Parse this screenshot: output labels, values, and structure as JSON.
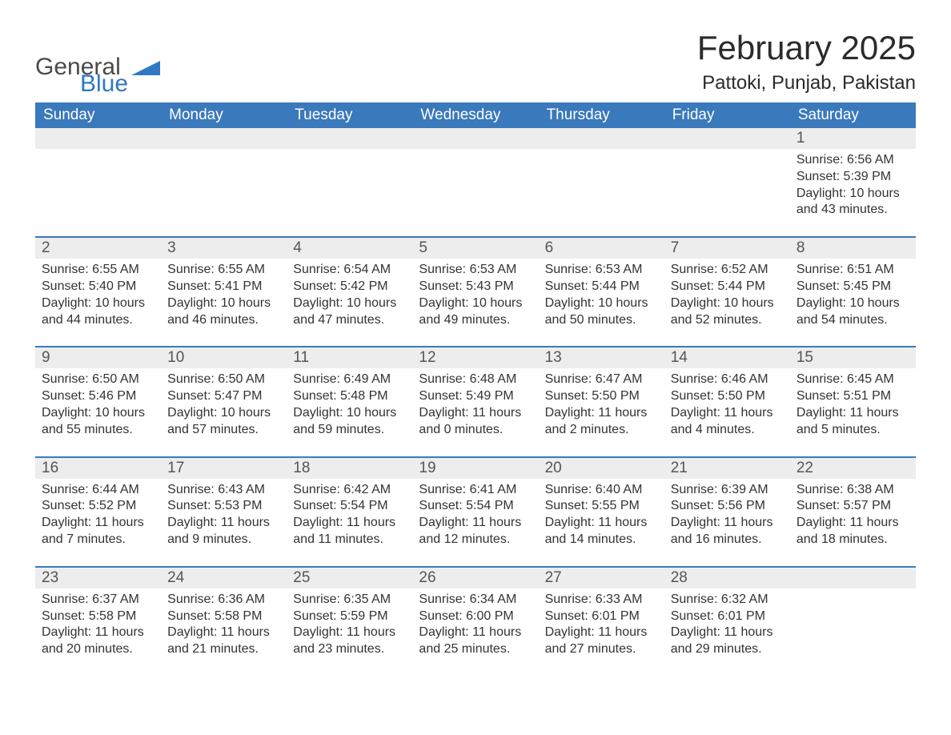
{
  "brand": {
    "word1": "General",
    "word2": "Blue",
    "flag_color": "#2f78c2"
  },
  "header": {
    "title": "February 2025",
    "location": "Pattoki, Punjab, Pakistan"
  },
  "colors": {
    "header_bg": "#3a79bb",
    "header_fg": "#ffffff",
    "daynum_bg": "#ededed",
    "row_divider": "#3a79bb",
    "text": "#333333",
    "page_bg": "#ffffff"
  },
  "typography": {
    "title_fontsize": 42,
    "location_fontsize": 24,
    "dayheader_fontsize": 19,
    "body_fontsize": 16
  },
  "day_names": [
    "Sunday",
    "Monday",
    "Tuesday",
    "Wednesday",
    "Thursday",
    "Friday",
    "Saturday"
  ],
  "weeks": [
    [
      null,
      null,
      null,
      null,
      null,
      null,
      {
        "n": "1",
        "sunrise": "Sunrise: 6:56 AM",
        "sunset": "Sunset: 5:39 PM",
        "daylight": "Daylight: 10 hours and 43 minutes."
      }
    ],
    [
      {
        "n": "2",
        "sunrise": "Sunrise: 6:55 AM",
        "sunset": "Sunset: 5:40 PM",
        "daylight": "Daylight: 10 hours and 44 minutes."
      },
      {
        "n": "3",
        "sunrise": "Sunrise: 6:55 AM",
        "sunset": "Sunset: 5:41 PM",
        "daylight": "Daylight: 10 hours and 46 minutes."
      },
      {
        "n": "4",
        "sunrise": "Sunrise: 6:54 AM",
        "sunset": "Sunset: 5:42 PM",
        "daylight": "Daylight: 10 hours and 47 minutes."
      },
      {
        "n": "5",
        "sunrise": "Sunrise: 6:53 AM",
        "sunset": "Sunset: 5:43 PM",
        "daylight": "Daylight: 10 hours and 49 minutes."
      },
      {
        "n": "6",
        "sunrise": "Sunrise: 6:53 AM",
        "sunset": "Sunset: 5:44 PM",
        "daylight": "Daylight: 10 hours and 50 minutes."
      },
      {
        "n": "7",
        "sunrise": "Sunrise: 6:52 AM",
        "sunset": "Sunset: 5:44 PM",
        "daylight": "Daylight: 10 hours and 52 minutes."
      },
      {
        "n": "8",
        "sunrise": "Sunrise: 6:51 AM",
        "sunset": "Sunset: 5:45 PM",
        "daylight": "Daylight: 10 hours and 54 minutes."
      }
    ],
    [
      {
        "n": "9",
        "sunrise": "Sunrise: 6:50 AM",
        "sunset": "Sunset: 5:46 PM",
        "daylight": "Daylight: 10 hours and 55 minutes."
      },
      {
        "n": "10",
        "sunrise": "Sunrise: 6:50 AM",
        "sunset": "Sunset: 5:47 PM",
        "daylight": "Daylight: 10 hours and 57 minutes."
      },
      {
        "n": "11",
        "sunrise": "Sunrise: 6:49 AM",
        "sunset": "Sunset: 5:48 PM",
        "daylight": "Daylight: 10 hours and 59 minutes."
      },
      {
        "n": "12",
        "sunrise": "Sunrise: 6:48 AM",
        "sunset": "Sunset: 5:49 PM",
        "daylight": "Daylight: 11 hours and 0 minutes."
      },
      {
        "n": "13",
        "sunrise": "Sunrise: 6:47 AM",
        "sunset": "Sunset: 5:50 PM",
        "daylight": "Daylight: 11 hours and 2 minutes."
      },
      {
        "n": "14",
        "sunrise": "Sunrise: 6:46 AM",
        "sunset": "Sunset: 5:50 PM",
        "daylight": "Daylight: 11 hours and 4 minutes."
      },
      {
        "n": "15",
        "sunrise": "Sunrise: 6:45 AM",
        "sunset": "Sunset: 5:51 PM",
        "daylight": "Daylight: 11 hours and 5 minutes."
      }
    ],
    [
      {
        "n": "16",
        "sunrise": "Sunrise: 6:44 AM",
        "sunset": "Sunset: 5:52 PM",
        "daylight": "Daylight: 11 hours and 7 minutes."
      },
      {
        "n": "17",
        "sunrise": "Sunrise: 6:43 AM",
        "sunset": "Sunset: 5:53 PM",
        "daylight": "Daylight: 11 hours and 9 minutes."
      },
      {
        "n": "18",
        "sunrise": "Sunrise: 6:42 AM",
        "sunset": "Sunset: 5:54 PM",
        "daylight": "Daylight: 11 hours and 11 minutes."
      },
      {
        "n": "19",
        "sunrise": "Sunrise: 6:41 AM",
        "sunset": "Sunset: 5:54 PM",
        "daylight": "Daylight: 11 hours and 12 minutes."
      },
      {
        "n": "20",
        "sunrise": "Sunrise: 6:40 AM",
        "sunset": "Sunset: 5:55 PM",
        "daylight": "Daylight: 11 hours and 14 minutes."
      },
      {
        "n": "21",
        "sunrise": "Sunrise: 6:39 AM",
        "sunset": "Sunset: 5:56 PM",
        "daylight": "Daylight: 11 hours and 16 minutes."
      },
      {
        "n": "22",
        "sunrise": "Sunrise: 6:38 AM",
        "sunset": "Sunset: 5:57 PM",
        "daylight": "Daylight: 11 hours and 18 minutes."
      }
    ],
    [
      {
        "n": "23",
        "sunrise": "Sunrise: 6:37 AM",
        "sunset": "Sunset: 5:58 PM",
        "daylight": "Daylight: 11 hours and 20 minutes."
      },
      {
        "n": "24",
        "sunrise": "Sunrise: 6:36 AM",
        "sunset": "Sunset: 5:58 PM",
        "daylight": "Daylight: 11 hours and 21 minutes."
      },
      {
        "n": "25",
        "sunrise": "Sunrise: 6:35 AM",
        "sunset": "Sunset: 5:59 PM",
        "daylight": "Daylight: 11 hours and 23 minutes."
      },
      {
        "n": "26",
        "sunrise": "Sunrise: 6:34 AM",
        "sunset": "Sunset: 6:00 PM",
        "daylight": "Daylight: 11 hours and 25 minutes."
      },
      {
        "n": "27",
        "sunrise": "Sunrise: 6:33 AM",
        "sunset": "Sunset: 6:01 PM",
        "daylight": "Daylight: 11 hours and 27 minutes."
      },
      {
        "n": "28",
        "sunrise": "Sunrise: 6:32 AM",
        "sunset": "Sunset: 6:01 PM",
        "daylight": "Daylight: 11 hours and 29 minutes."
      },
      null
    ]
  ]
}
